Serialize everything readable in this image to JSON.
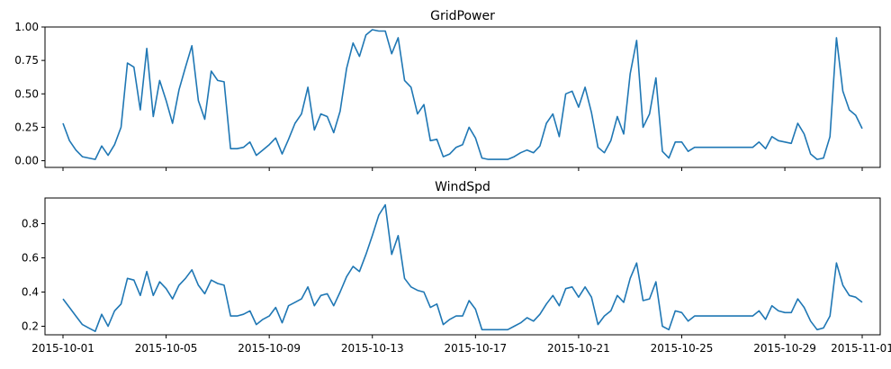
{
  "chart_data": [
    {
      "type": "line",
      "title": "GridPower",
      "xlabel": "",
      "ylabel": "",
      "xlim": [
        "2015-10-01",
        "2015-11-01"
      ],
      "ylim": [
        -0.05,
        1.0
      ],
      "yticks": [
        0.0,
        0.25,
        0.5,
        0.75,
        1.0
      ],
      "ytick_labels": [
        "0.00",
        "0.25",
        "0.50",
        "0.75",
        "1.00"
      ],
      "xtick_labels": [],
      "grid": false,
      "color": "#1f77b4",
      "series": [
        {
          "x": [
            "2015-10-01T00:00",
            "2015-10-01T06:00",
            "2015-10-01T12:00",
            "2015-10-01T18:00",
            "2015-10-02T00:00",
            "2015-10-02T06:00",
            "2015-10-02T12:00",
            "2015-10-02T18:00",
            "2015-10-03T00:00",
            "2015-10-03T06:00",
            "2015-10-03T12:00",
            "2015-10-03T18:00",
            "2015-10-04T00:00",
            "2015-10-04T06:00",
            "2015-10-04T12:00",
            "2015-10-04T18:00",
            "2015-10-05T00:00",
            "2015-10-05T06:00",
            "2015-10-05T12:00",
            "2015-10-05T18:00",
            "2015-10-06T00:00",
            "2015-10-06T06:00",
            "2015-10-06T12:00",
            "2015-10-06T18:00",
            "2015-10-07T00:00",
            "2015-10-07T06:00",
            "2015-10-07T12:00",
            "2015-10-07T18:00",
            "2015-10-08T00:00",
            "2015-10-08T06:00",
            "2015-10-08T12:00",
            "2015-10-08T18:00",
            "2015-10-09T00:00",
            "2015-10-09T06:00",
            "2015-10-09T12:00",
            "2015-10-09T18:00",
            "2015-10-10T00:00",
            "2015-10-10T06:00",
            "2015-10-10T12:00",
            "2015-10-10T18:00",
            "2015-10-11T00:00",
            "2015-10-11T06:00",
            "2015-10-11T12:00",
            "2015-10-11T18:00",
            "2015-10-12T00:00",
            "2015-10-12T06:00",
            "2015-10-12T12:00",
            "2015-10-12T18:00",
            "2015-10-13T00:00",
            "2015-10-13T06:00",
            "2015-10-13T12:00",
            "2015-10-13T18:00",
            "2015-10-14T00:00",
            "2015-10-14T06:00",
            "2015-10-14T12:00",
            "2015-10-14T18:00",
            "2015-10-15T00:00",
            "2015-10-15T06:00",
            "2015-10-15T12:00",
            "2015-10-15T18:00",
            "2015-10-16T00:00",
            "2015-10-16T06:00",
            "2015-10-16T12:00",
            "2015-10-16T18:00",
            "2015-10-17T00:00",
            "2015-10-17T06:00",
            "2015-10-17T12:00",
            "2015-10-17T18:00",
            "2015-10-18T00:00",
            "2015-10-18T06:00",
            "2015-10-18T12:00",
            "2015-10-18T18:00",
            "2015-10-19T00:00",
            "2015-10-19T06:00",
            "2015-10-19T12:00",
            "2015-10-19T18:00",
            "2015-10-20T00:00",
            "2015-10-20T06:00",
            "2015-10-20T12:00",
            "2015-10-20T18:00",
            "2015-10-21T00:00",
            "2015-10-21T06:00",
            "2015-10-21T12:00",
            "2015-10-21T18:00",
            "2015-10-22T00:00",
            "2015-10-22T06:00",
            "2015-10-22T12:00",
            "2015-10-22T18:00",
            "2015-10-23T00:00",
            "2015-10-23T06:00",
            "2015-10-23T12:00",
            "2015-10-23T18:00",
            "2015-10-24T00:00",
            "2015-10-24T06:00",
            "2015-10-24T12:00",
            "2015-10-24T18:00",
            "2015-10-25T00:00",
            "2015-10-25T06:00",
            "2015-10-25T12:00",
            "2015-10-25T18:00",
            "2015-10-26T00:00",
            "2015-10-26T06:00",
            "2015-10-26T12:00",
            "2015-10-26T18:00",
            "2015-10-27T00:00",
            "2015-10-27T06:00",
            "2015-10-27T12:00",
            "2015-10-27T18:00",
            "2015-10-28T00:00",
            "2015-10-28T06:00",
            "2015-10-28T12:00",
            "2015-10-28T18:00",
            "2015-10-29T00:00",
            "2015-10-29T06:00",
            "2015-10-29T12:00",
            "2015-10-29T18:00",
            "2015-10-30T00:00",
            "2015-10-30T06:00",
            "2015-10-30T12:00",
            "2015-10-30T18:00",
            "2015-10-31T00:00",
            "2015-10-31T06:00",
            "2015-10-31T12:00",
            "2015-10-31T18:00",
            "2015-11-01T00:00"
          ],
          "values": [
            0.28,
            0.15,
            0.08,
            0.03,
            0.02,
            0.01,
            0.11,
            0.04,
            0.12,
            0.25,
            0.73,
            0.7,
            0.38,
            0.84,
            0.33,
            0.6,
            0.45,
            0.28,
            0.53,
            0.7,
            0.86,
            0.45,
            0.31,
            0.67,
            0.6,
            0.59,
            0.09,
            0.09,
            0.1,
            0.14,
            0.04,
            0.08,
            0.12,
            0.17,
            0.05,
            0.16,
            0.28,
            0.35,
            0.55,
            0.23,
            0.35,
            0.33,
            0.21,
            0.37,
            0.69,
            0.88,
            0.78,
            0.94,
            0.98,
            0.97,
            0.97,
            0.8,
            0.92,
            0.6,
            0.55,
            0.35,
            0.42,
            0.15,
            0.16,
            0.03,
            0.05,
            0.1,
            0.12,
            0.25,
            0.17,
            0.02,
            0.01,
            0.01,
            0.01,
            0.01,
            0.03,
            0.06,
            0.08,
            0.06,
            0.11,
            0.28,
            0.35,
            0.18,
            0.5,
            0.52,
            0.4,
            0.55,
            0.36,
            0.1,
            0.06,
            0.15,
            0.33,
            0.2,
            0.65,
            0.9,
            0.25,
            0.35,
            0.62,
            0.07,
            0.02,
            0.14,
            0.14,
            0.07,
            0.1,
            0.1,
            0.1,
            0.1,
            0.1,
            0.1,
            0.1,
            0.1,
            0.1,
            0.1,
            0.14,
            0.09,
            0.18,
            0.15,
            0.14,
            0.13,
            0.28,
            0.2,
            0.05,
            0.01,
            0.02,
            0.18,
            0.92,
            0.52,
            0.38,
            0.34,
            0.24
          ]
        }
      ]
    },
    {
      "type": "line",
      "title": "WindSpd",
      "xlabel": "",
      "ylabel": "",
      "xlim": [
        "2015-10-01",
        "2015-11-01"
      ],
      "ylim": [
        0.15,
        0.95
      ],
      "yticks": [
        0.2,
        0.4,
        0.6,
        0.8
      ],
      "ytick_labels": [
        "0.2",
        "0.4",
        "0.6",
        "0.8"
      ],
      "xtick_labels": [
        "2015-10-01",
        "2015-10-05",
        "2015-10-09",
        "2015-10-13",
        "2015-10-17",
        "2015-10-21",
        "2015-10-25",
        "2015-10-29",
        "2015-11-01"
      ],
      "xtick_dates": [
        "2015-10-01",
        "2015-10-05",
        "2015-10-09",
        "2015-10-13",
        "2015-10-17",
        "2015-10-21",
        "2015-10-25",
        "2015-10-29",
        "2015-11-01"
      ],
      "grid": false,
      "color": "#1f77b4",
      "series": [
        {
          "x": [
            "2015-10-01T00:00",
            "2015-10-01T06:00",
            "2015-10-01T12:00",
            "2015-10-01T18:00",
            "2015-10-02T00:00",
            "2015-10-02T06:00",
            "2015-10-02T12:00",
            "2015-10-02T18:00",
            "2015-10-03T00:00",
            "2015-10-03T06:00",
            "2015-10-03T12:00",
            "2015-10-03T18:00",
            "2015-10-04T00:00",
            "2015-10-04T06:00",
            "2015-10-04T12:00",
            "2015-10-04T18:00",
            "2015-10-05T00:00",
            "2015-10-05T06:00",
            "2015-10-05T12:00",
            "2015-10-05T18:00",
            "2015-10-06T00:00",
            "2015-10-06T06:00",
            "2015-10-06T12:00",
            "2015-10-06T18:00",
            "2015-10-07T00:00",
            "2015-10-07T06:00",
            "2015-10-07T12:00",
            "2015-10-07T18:00",
            "2015-10-08T00:00",
            "2015-10-08T06:00",
            "2015-10-08T12:00",
            "2015-10-08T18:00",
            "2015-10-09T00:00",
            "2015-10-09T06:00",
            "2015-10-09T12:00",
            "2015-10-09T18:00",
            "2015-10-10T00:00",
            "2015-10-10T06:00",
            "2015-10-10T12:00",
            "2015-10-10T18:00",
            "2015-10-11T00:00",
            "2015-10-11T06:00",
            "2015-10-11T12:00",
            "2015-10-11T18:00",
            "2015-10-12T00:00",
            "2015-10-12T06:00",
            "2015-10-12T12:00",
            "2015-10-12T18:00",
            "2015-10-13T00:00",
            "2015-10-13T06:00",
            "2015-10-13T12:00",
            "2015-10-13T18:00",
            "2015-10-14T00:00",
            "2015-10-14T06:00",
            "2015-10-14T12:00",
            "2015-10-14T18:00",
            "2015-10-15T00:00",
            "2015-10-15T06:00",
            "2015-10-15T12:00",
            "2015-10-15T18:00",
            "2015-10-16T00:00",
            "2015-10-16T06:00",
            "2015-10-16T12:00",
            "2015-10-16T18:00",
            "2015-10-17T00:00",
            "2015-10-17T06:00",
            "2015-10-17T12:00",
            "2015-10-17T18:00",
            "2015-10-18T00:00",
            "2015-10-18T06:00",
            "2015-10-18T12:00",
            "2015-10-18T18:00",
            "2015-10-19T00:00",
            "2015-10-19T06:00",
            "2015-10-19T12:00",
            "2015-10-19T18:00",
            "2015-10-20T00:00",
            "2015-10-20T06:00",
            "2015-10-20T12:00",
            "2015-10-20T18:00",
            "2015-10-21T00:00",
            "2015-10-21T06:00",
            "2015-10-21T12:00",
            "2015-10-21T18:00",
            "2015-10-22T00:00",
            "2015-10-22T06:00",
            "2015-10-22T12:00",
            "2015-10-22T18:00",
            "2015-10-23T00:00",
            "2015-10-23T06:00",
            "2015-10-23T12:00",
            "2015-10-23T18:00",
            "2015-10-24T00:00",
            "2015-10-24T06:00",
            "2015-10-24T12:00",
            "2015-10-24T18:00",
            "2015-10-25T00:00",
            "2015-10-25T06:00",
            "2015-10-25T12:00",
            "2015-10-25T18:00",
            "2015-10-26T00:00",
            "2015-10-26T06:00",
            "2015-10-26T12:00",
            "2015-10-26T18:00",
            "2015-10-27T00:00",
            "2015-10-27T06:00",
            "2015-10-27T12:00",
            "2015-10-27T18:00",
            "2015-10-28T00:00",
            "2015-10-28T06:00",
            "2015-10-28T12:00",
            "2015-10-28T18:00",
            "2015-10-29T00:00",
            "2015-10-29T06:00",
            "2015-10-29T12:00",
            "2015-10-29T18:00",
            "2015-10-30T00:00",
            "2015-10-30T06:00",
            "2015-10-30T12:00",
            "2015-10-30T18:00",
            "2015-10-31T00:00",
            "2015-10-31T06:00",
            "2015-10-31T12:00",
            "2015-10-31T18:00",
            "2015-11-01T00:00"
          ],
          "values": [
            0.36,
            0.31,
            0.26,
            0.21,
            0.19,
            0.17,
            0.27,
            0.2,
            0.29,
            0.33,
            0.48,
            0.47,
            0.38,
            0.52,
            0.38,
            0.46,
            0.42,
            0.36,
            0.44,
            0.48,
            0.53,
            0.44,
            0.39,
            0.47,
            0.45,
            0.44,
            0.26,
            0.26,
            0.27,
            0.29,
            0.21,
            0.24,
            0.26,
            0.31,
            0.22,
            0.32,
            0.34,
            0.36,
            0.43,
            0.32,
            0.38,
            0.39,
            0.32,
            0.4,
            0.49,
            0.55,
            0.52,
            0.62,
            0.73,
            0.85,
            0.91,
            0.62,
            0.73,
            0.48,
            0.43,
            0.41,
            0.4,
            0.31,
            0.33,
            0.21,
            0.24,
            0.26,
            0.26,
            0.35,
            0.3,
            0.18,
            0.18,
            0.18,
            0.18,
            0.18,
            0.2,
            0.22,
            0.25,
            0.23,
            0.27,
            0.33,
            0.38,
            0.32,
            0.42,
            0.43,
            0.37,
            0.43,
            0.37,
            0.21,
            0.26,
            0.29,
            0.38,
            0.34,
            0.48,
            0.57,
            0.35,
            0.36,
            0.46,
            0.2,
            0.18,
            0.29,
            0.28,
            0.23,
            0.26,
            0.26,
            0.26,
            0.26,
            0.26,
            0.26,
            0.26,
            0.26,
            0.26,
            0.26,
            0.29,
            0.24,
            0.32,
            0.29,
            0.28,
            0.28,
            0.36,
            0.31,
            0.23,
            0.18,
            0.19,
            0.26,
            0.57,
            0.44,
            0.38,
            0.37,
            0.34
          ]
        }
      ]
    }
  ]
}
